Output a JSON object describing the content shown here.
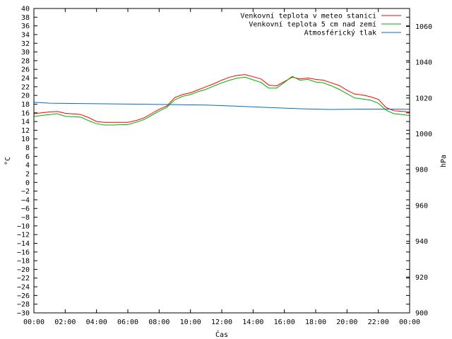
{
  "chart_data": {
    "type": "line",
    "xlabel": "Čas",
    "ylabel_left": "°C",
    "ylabel_right": "hPa",
    "x_ticks": [
      "00:00",
      "02:00",
      "04:00",
      "06:00",
      "08:00",
      "10:00",
      "12:00",
      "14:00",
      "16:00",
      "18:00",
      "20:00",
      "22:00",
      "00:00"
    ],
    "x_range_hours": [
      0,
      24
    ],
    "y_left_range": [
      -30,
      40
    ],
    "y_left_step": 2,
    "y_right_range": [
      900,
      1070
    ],
    "y_right_ticks": [
      900,
      920,
      940,
      960,
      980,
      1000,
      1020,
      1040,
      1060
    ],
    "grid": false,
    "legend_position": "top-right",
    "series": [
      {
        "name": "Venkovní teplota v meteo stanici",
        "axis": "left",
        "color": "#ff0000",
        "points": [
          [
            0,
            15.8
          ],
          [
            1,
            16.2
          ],
          [
            1.5,
            16.3
          ],
          [
            2,
            15.9
          ],
          [
            3,
            15.6
          ],
          [
            3.5,
            14.9
          ],
          [
            4,
            14.0
          ],
          [
            4.5,
            13.8
          ],
          [
            5,
            13.8
          ],
          [
            6,
            13.8
          ],
          [
            6.5,
            14.2
          ],
          [
            7,
            14.8
          ],
          [
            7.5,
            15.8
          ],
          [
            8,
            16.8
          ],
          [
            8.5,
            17.6
          ],
          [
            9,
            19.5
          ],
          [
            9.5,
            20.2
          ],
          [
            10,
            20.6
          ],
          [
            10.5,
            21.3
          ],
          [
            11,
            22.0
          ],
          [
            11.5,
            22.7
          ],
          [
            12,
            23.5
          ],
          [
            12.5,
            24.2
          ],
          [
            13,
            24.6
          ],
          [
            13.5,
            24.8
          ],
          [
            14,
            24.3
          ],
          [
            14.5,
            23.8
          ],
          [
            15,
            22.4
          ],
          [
            15.5,
            22.2
          ],
          [
            16,
            23.2
          ],
          [
            16.5,
            24.2
          ],
          [
            17,
            23.8
          ],
          [
            17.5,
            24.0
          ],
          [
            18,
            23.7
          ],
          [
            18.5,
            23.5
          ],
          [
            19,
            22.9
          ],
          [
            19.5,
            22.3
          ],
          [
            20,
            21.2
          ],
          [
            20.5,
            20.3
          ],
          [
            21,
            20.1
          ],
          [
            21.5,
            19.7
          ],
          [
            22,
            19.1
          ],
          [
            22.5,
            17.2
          ],
          [
            23,
            16.5
          ],
          [
            24,
            16.2
          ]
        ]
      },
      {
        "name": "Venkovní teplota 5 cm nad zemí",
        "axis": "left",
        "color": "#00b000",
        "points": [
          [
            0,
            15.2
          ],
          [
            1,
            15.6
          ],
          [
            1.5,
            15.8
          ],
          [
            2,
            15.2
          ],
          [
            3,
            15.0
          ],
          [
            3.5,
            14.2
          ],
          [
            4,
            13.5
          ],
          [
            4.5,
            13.2
          ],
          [
            5,
            13.2
          ],
          [
            6,
            13.3
          ],
          [
            6.5,
            13.8
          ],
          [
            7,
            14.4
          ],
          [
            7.5,
            15.4
          ],
          [
            8,
            16.4
          ],
          [
            8.5,
            17.3
          ],
          [
            9,
            19.0
          ],
          [
            9.5,
            19.8
          ],
          [
            10,
            20.2
          ],
          [
            10.5,
            20.9
          ],
          [
            11,
            21.4
          ],
          [
            11.5,
            22.2
          ],
          [
            12,
            22.9
          ],
          [
            12.5,
            23.5
          ],
          [
            13,
            24.0
          ],
          [
            13.5,
            24.2
          ],
          [
            14,
            23.6
          ],
          [
            14.5,
            23.0
          ],
          [
            15,
            21.7
          ],
          [
            15.5,
            21.7
          ],
          [
            16,
            23.0
          ],
          [
            16.5,
            24.4
          ],
          [
            17,
            23.5
          ],
          [
            17.5,
            23.7
          ],
          [
            18,
            23.1
          ],
          [
            18.5,
            22.9
          ],
          [
            19,
            22.2
          ],
          [
            19.5,
            21.4
          ],
          [
            20,
            20.4
          ],
          [
            20.5,
            19.4
          ],
          [
            21,
            19.2
          ],
          [
            21.5,
            18.9
          ],
          [
            22,
            18.2
          ],
          [
            22.5,
            16.6
          ],
          [
            23,
            15.8
          ],
          [
            24,
            15.4
          ]
        ]
      },
      {
        "name": "Atmosférický tlak",
        "axis": "right",
        "color": "#0070c0",
        "points": [
          [
            0,
            1017.6
          ],
          [
            1,
            1017.1
          ],
          [
            3,
            1016.9
          ],
          [
            6,
            1016.6
          ],
          [
            9,
            1016.3
          ],
          [
            11,
            1016.1
          ],
          [
            13,
            1015.4
          ],
          [
            15,
            1014.7
          ],
          [
            17,
            1014.0
          ],
          [
            19,
            1013.6
          ],
          [
            21,
            1013.8
          ],
          [
            23,
            1013.8
          ],
          [
            24,
            1013.7
          ]
        ]
      }
    ]
  }
}
